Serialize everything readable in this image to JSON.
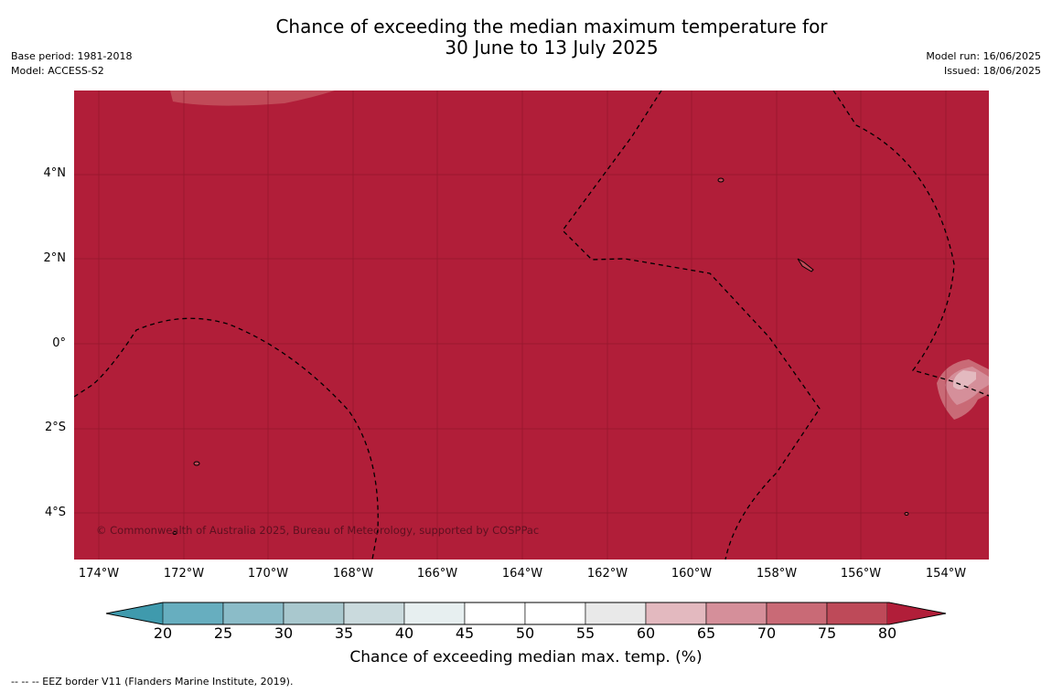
{
  "header": {
    "title_line1": "Chance of exceeding the median maximum temperature for",
    "title_line2": "30 June to 13 July 2025",
    "base_period": "Base period: 1981-2018",
    "model": "Model: ACCESS-S2",
    "model_run": "Model run: 16/06/2025",
    "issued": "Issued: 18/06/2025"
  },
  "map": {
    "copyright": "© Commonwealth of Australia 2025, Bureau of Meteorology, supported by COSPPac",
    "latitude_labels": [
      "4°N",
      "2°N",
      "0°",
      "2°S",
      "4°S"
    ],
    "longitude_labels": [
      "174°W",
      "172°W",
      "170°W",
      "168°W",
      "166°W",
      "164°W",
      "162°W",
      "160°W",
      "158°W",
      "156°W",
      "154°W"
    ],
    "dominant_category": "80",
    "dominant_color": "#b11e39"
  },
  "colorbar": {
    "label": "Chance of exceeding median max. temp. (%)",
    "ticks": [
      "20",
      "25",
      "30",
      "35",
      "40",
      "45",
      "50",
      "55",
      "60",
      "65",
      "70",
      "75",
      "80"
    ],
    "colors": [
      "#3f9aad",
      "#67aebf",
      "#8bbcc8",
      "#a9c8ce",
      "#cadadd",
      "#e7eff0",
      "#ffffff",
      "#ffffff",
      "#e9e9e9",
      "#e3b9bf",
      "#d58f9a",
      "#c96a76",
      "#be4a59",
      "#b11e39"
    ]
  },
  "legend": {
    "eez_note": "--  --  -- EEZ border V11 (Flanders Marine Institute, 2019)."
  }
}
